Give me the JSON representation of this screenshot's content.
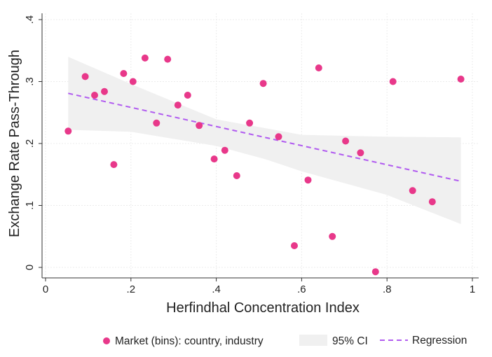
{
  "chart_data": {
    "type": "scatter",
    "xlabel": "Herfindhal Concentration Index",
    "ylabel": "Exchange Rate Pass-Through",
    "xlim": [
      0,
      1
    ],
    "ylim": [
      0,
      0.4
    ],
    "x_ticks": [
      0,
      0.2,
      0.4,
      0.6,
      0.8,
      1
    ],
    "x_tick_labels": [
      "0",
      ".2",
      ".4",
      ".6",
      ".8",
      "1"
    ],
    "y_ticks": [
      0,
      0.1,
      0.2,
      0.3,
      0.4
    ],
    "y_tick_labels": [
      "0",
      ".1",
      ".2",
      ".3",
      ".4"
    ],
    "grid": true,
    "legend_position": "bottom",
    "series": [
      {
        "name": "Market (bins): country, industry",
        "type": "scatter",
        "color": "#e8388a",
        "points": [
          [
            0.053,
            0.22
          ],
          [
            0.093,
            0.308
          ],
          [
            0.115,
            0.278
          ],
          [
            0.138,
            0.284
          ],
          [
            0.16,
            0.166
          ],
          [
            0.183,
            0.313
          ],
          [
            0.205,
            0.3
          ],
          [
            0.233,
            0.338
          ],
          [
            0.26,
            0.233
          ],
          [
            0.286,
            0.336
          ],
          [
            0.31,
            0.262
          ],
          [
            0.333,
            0.278
          ],
          [
            0.36,
            0.229
          ],
          [
            0.395,
            0.175
          ],
          [
            0.42,
            0.189
          ],
          [
            0.448,
            0.148
          ],
          [
            0.478,
            0.233
          ],
          [
            0.51,
            0.297
          ],
          [
            0.546,
            0.211
          ],
          [
            0.583,
            0.035
          ],
          [
            0.615,
            0.141
          ],
          [
            0.64,
            0.322
          ],
          [
            0.672,
            0.05
          ],
          [
            0.703,
            0.204
          ],
          [
            0.738,
            0.185
          ],
          [
            0.773,
            -0.007
          ],
          [
            0.814,
            0.3
          ],
          [
            0.86,
            0.124
          ],
          [
            0.906,
            0.106
          ],
          [
            0.973,
            0.304
          ]
        ]
      },
      {
        "name": "95% CI",
        "type": "area",
        "color": "#f0f0f0",
        "x": [
          0.053,
          0.2,
          0.4,
          0.513,
          0.6,
          0.8,
          0.973
        ],
        "upper": [
          0.34,
          0.296,
          0.239,
          0.225,
          0.214,
          0.211,
          0.21
        ],
        "lower": [
          0.222,
          0.219,
          0.196,
          0.175,
          0.155,
          0.117,
          0.07
        ]
      },
      {
        "name": "Regression",
        "type": "line",
        "style": "dashed",
        "color": "#b15cf0",
        "x": [
          0.053,
          0.973
        ],
        "y": [
          0.281,
          0.139
        ]
      }
    ]
  }
}
